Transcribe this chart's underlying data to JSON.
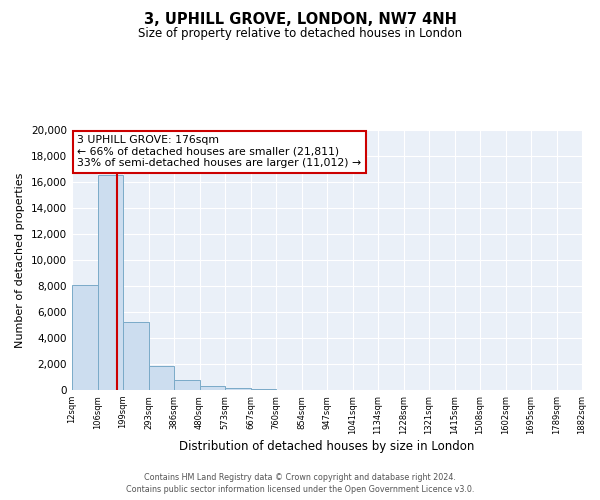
{
  "title": "3, UPHILL GROVE, LONDON, NW7 4NH",
  "subtitle": "Size of property relative to detached houses in London",
  "xlabel": "Distribution of detached houses by size in London",
  "ylabel": "Number of detached properties",
  "bin_labels": [
    "12sqm",
    "106sqm",
    "199sqm",
    "293sqm",
    "386sqm",
    "480sqm",
    "573sqm",
    "667sqm",
    "760sqm",
    "854sqm",
    "947sqm",
    "1041sqm",
    "1134sqm",
    "1228sqm",
    "1321sqm",
    "1415sqm",
    "1508sqm",
    "1602sqm",
    "1695sqm",
    "1789sqm",
    "1882sqm"
  ],
  "bar_heights": [
    8100,
    16500,
    5250,
    1850,
    750,
    300,
    150,
    75,
    30,
    10,
    5,
    3,
    2,
    1,
    0,
    0,
    0,
    0,
    0,
    0
  ],
  "bar_color": "#ccddef",
  "bar_edge_color": "#7aaac8",
  "vline_color": "#cc0000",
  "vline_x": 1.75,
  "ylim": [
    0,
    20000
  ],
  "yticks": [
    0,
    2000,
    4000,
    6000,
    8000,
    10000,
    12000,
    14000,
    16000,
    18000,
    20000
  ],
  "annotation_title": "3 UPHILL GROVE: 176sqm",
  "annotation_line1": "← 66% of detached houses are smaller (21,811)",
  "annotation_line2": "33% of semi-detached houses are larger (11,012) →",
  "annotation_box_color": "#ffffff",
  "annotation_box_edge": "#cc0000",
  "footer1": "Contains HM Land Registry data © Crown copyright and database right 2024.",
  "footer2": "Contains public sector information licensed under the Open Government Licence v3.0.",
  "bg_color": "#ffffff",
  "plot_bg_color": "#eaf0f8",
  "grid_color": "#ffffff"
}
